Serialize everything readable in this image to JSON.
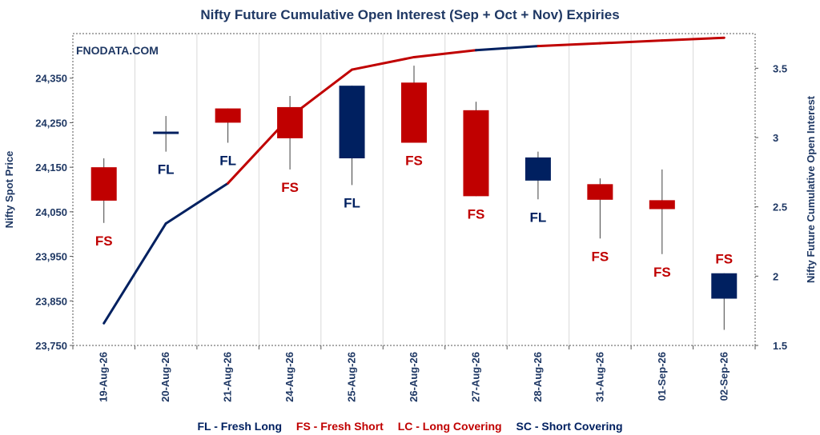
{
  "chart_data": {
    "type": "candlestick",
    "title": "Nifty Future Cumulative Open Interest (Sep + Oct + Nov) Expiries",
    "watermark": "FNODATA.COM",
    "ylabel_left": "Nifty Spot Price",
    "ylabel_right": "Nifty Future Cumulative Open Interest",
    "y_left": {
      "min": 23750,
      "max": 24450,
      "ticks": [
        23750,
        23850,
        23950,
        24050,
        24150,
        24250,
        24350
      ],
      "tick_labels": [
        "23,750",
        "23,850",
        "23,950",
        "24,050",
        "24,150",
        "24,250",
        "24,350"
      ]
    },
    "y_right": {
      "min": 1.5,
      "max": 3.75,
      "ticks": [
        1.5,
        2,
        2.5,
        3,
        3.5
      ],
      "tick_labels": [
        "1.5",
        "2",
        "2.5",
        "3",
        "3.5"
      ]
    },
    "categories": [
      "19-Aug-26",
      "20-Aug-26",
      "21-Aug-26",
      "24-Aug-26",
      "25-Aug-26",
      "26-Aug-26",
      "27-Aug-26",
      "28-Aug-26",
      "31-Aug-26",
      "01-Sep-26",
      "02-Sep-26"
    ],
    "candles": [
      {
        "open": 24150,
        "close": 24075,
        "high": 24170,
        "low": 24025,
        "signal": "FS",
        "color": "#c00000"
      },
      {
        "open": 24225,
        "close": 24230,
        "high": 24265,
        "low": 24185,
        "signal": "FL",
        "color": "#002060"
      },
      {
        "open": 24282,
        "close": 24250,
        "high": 24282,
        "low": 24205,
        "signal": "FL",
        "color": "#c00000"
      },
      {
        "open": 24285,
        "close": 24215,
        "high": 24310,
        "low": 24145,
        "signal": "FS",
        "color": "#c00000"
      },
      {
        "open": 24170,
        "close": 24333,
        "high": 24333,
        "low": 24110,
        "signal": "FL",
        "color": "#002060"
      },
      {
        "open": 24340,
        "close": 24205,
        "high": 24378,
        "low": 24205,
        "signal": "FS",
        "color": "#c00000"
      },
      {
        "open": 24278,
        "close": 24085,
        "high": 24297,
        "low": 24085,
        "signal": "FS",
        "color": "#c00000"
      },
      {
        "open": 24120,
        "close": 24172,
        "high": 24185,
        "low": 24078,
        "signal": "FL",
        "color": "#002060"
      },
      {
        "open": 24112,
        "close": 24077,
        "high": 24125,
        "low": 23990,
        "signal": "FS",
        "color": "#c00000"
      },
      {
        "open": 24076,
        "close": 24056,
        "high": 24145,
        "low": 23955,
        "signal": "FS",
        "color": "#c00000"
      },
      {
        "open": 23855,
        "close": 23912,
        "high": 23912,
        "low": 23785,
        "signal": "FS",
        "color": "#002060"
      }
    ],
    "open_interest": {
      "values": [
        1.66,
        2.38,
        2.67,
        3.15,
        3.49,
        3.58,
        3.63,
        3.66,
        3.68,
        3.7,
        3.72
      ],
      "segment_colors": [
        "#002060",
        "#002060",
        "#c00000",
        "#c00000",
        "#c00000",
        "#c00000",
        "#002060",
        "#c00000",
        "#c00000",
        "#c00000"
      ]
    },
    "legend": [
      {
        "text": "FL - Fresh Long",
        "color": "#002060"
      },
      {
        "text": "FS - Fresh Short",
        "color": "#c00000"
      },
      {
        "text": "LC - Long Covering",
        "color": "#c00000"
      },
      {
        "text": "SC - Short Covering",
        "color": "#002060"
      }
    ]
  }
}
